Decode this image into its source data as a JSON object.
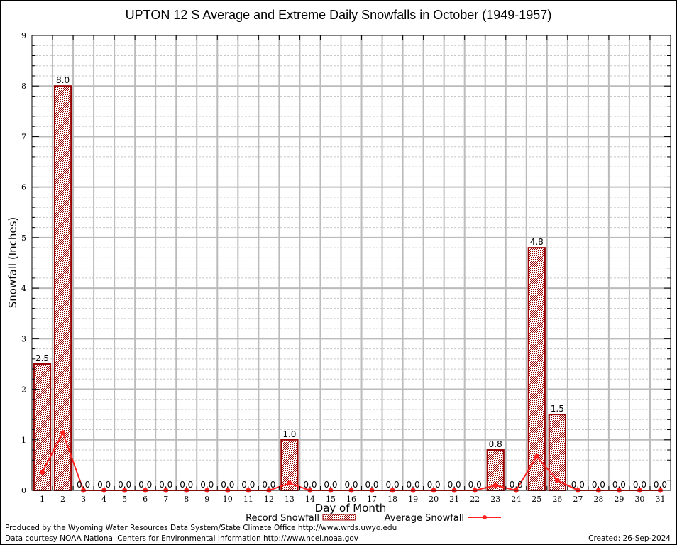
{
  "chart_data": {
    "type": "bar",
    "title": "UPTON 12 S Average and Extreme Daily Snowfalls in October (1949-1957)",
    "xlabel": "Day of Month",
    "ylabel": "Snowfall (Inches)",
    "ylim": [
      0,
      9
    ],
    "yticks": [
      "0",
      "1",
      "2",
      "3",
      "4",
      "5",
      "6",
      "7",
      "8",
      "9"
    ],
    "categories": [
      "1",
      "2",
      "3",
      "4",
      "5",
      "6",
      "7",
      "8",
      "9",
      "10",
      "11",
      "12",
      "13",
      "14",
      "15",
      "16",
      "17",
      "18",
      "19",
      "20",
      "21",
      "22",
      "23",
      "24",
      "25",
      "26",
      "27",
      "28",
      "29",
      "30",
      "31"
    ],
    "grid": true,
    "series": [
      {
        "name": "Record Snowfall",
        "type": "bar",
        "color": "#990000",
        "values": [
          2.5,
          8.0,
          0.0,
          0.0,
          0.0,
          0.0,
          0.0,
          0.0,
          0.0,
          0.0,
          0.0,
          0.0,
          1.0,
          0.0,
          0.0,
          0.0,
          0.0,
          0.0,
          0.0,
          0.0,
          0.0,
          0.0,
          0.8,
          0.0,
          4.8,
          1.5,
          0.0,
          0.0,
          0.0,
          0.0,
          0.0
        ],
        "labels": [
          "2.5",
          "8.0",
          "0.0",
          "0.0",
          "0.0",
          "0.0",
          "0.0",
          "0.0",
          "0.0",
          "0.0",
          "0.0",
          "0.0",
          "1.0",
          "0.0",
          "0.0",
          "0.0",
          "0.0",
          "0.0",
          "0.0",
          "0.0",
          "0.0",
          "0.0",
          "0.8",
          "0.0",
          "4.8",
          "1.5",
          "0.0",
          "0.0",
          "0.0",
          "0.0",
          "0.0"
        ]
      },
      {
        "name": "Average Snowfall",
        "type": "line",
        "color": "#ff2020",
        "values": [
          0.36,
          1.14,
          0.0,
          0.0,
          0.0,
          0.0,
          0.0,
          0.0,
          0.0,
          0.0,
          0.0,
          0.0,
          0.14,
          0.0,
          0.0,
          0.0,
          0.0,
          0.0,
          0.0,
          0.0,
          0.0,
          0.0,
          0.1,
          0.0,
          0.67,
          0.2,
          0.0,
          0.0,
          0.0,
          0.0,
          0.0
        ]
      }
    ],
    "legend": "bottom-center"
  },
  "footer": {
    "line1": "Produced by the Wyoming Water Resources Data System/State Climate Office http://www.wrds.uwyo.edu",
    "line2": "Data courtesy NOAA National Centers for Environmental Information http://www.ncei.noaa.gov",
    "created": "Created: 26-Sep-2024"
  }
}
